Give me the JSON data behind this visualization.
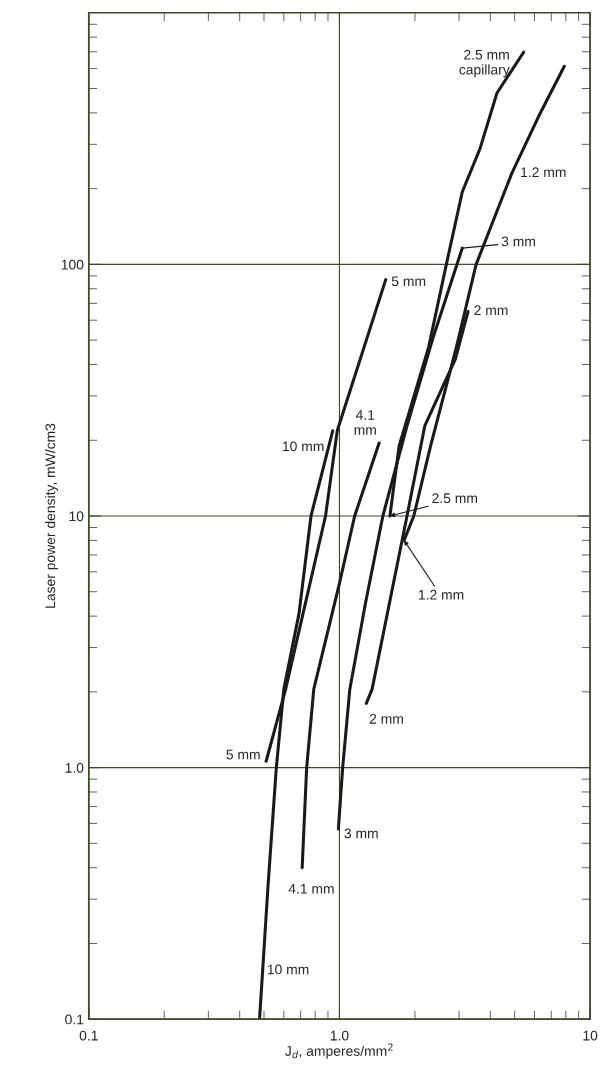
{
  "chart_data": {
    "type": "line",
    "xlabel": "J$_{d}$, amperes/mm$^{2}$",
    "ylabel": "Laser power density, mW/cm3",
    "log": "xy",
    "xlim": [
      0.1,
      10
    ],
    "ylim": [
      0.1,
      1000
    ],
    "xticks": [
      {
        "value": 0.1,
        "label": "0.1"
      },
      {
        "value": 1,
        "label": "1.0"
      },
      {
        "value": 10,
        "label": "10"
      }
    ],
    "yticks": [
      {
        "value": 0.1,
        "label": "0.1"
      },
      {
        "value": 1,
        "label": "1.0"
      },
      {
        "value": 10,
        "label": "10"
      },
      {
        "value": 100,
        "label": "100"
      }
    ],
    "grid": true,
    "legend": false,
    "marker": "none",
    "line_style": "solid",
    "series": [
      {
        "color": "#1a1a1a",
        "x": [
          0.48,
          0.52,
          0.56,
          0.6,
          0.69,
          0.77,
          0.94
        ],
        "values": [
          0.1,
          0.35,
          1.0,
          2.05,
          4.1,
          10,
          21.8
        ]
      },
      {
        "color": "#1a1a1a",
        "x": [
          0.51,
          0.61,
          0.88,
          0.98,
          1.53
        ],
        "values": [
          1.06,
          2.05,
          10,
          21.8,
          87
        ]
      },
      {
        "color": "#1a1a1a",
        "x": [
          0.71,
          0.74,
          0.79,
          1.0,
          1.15,
          1.44
        ],
        "values": [
          0.4,
          1.0,
          2.05,
          5.4,
          10,
          19.5
        ]
      },
      {
        "color": "#1a1a1a",
        "x": [
          0.99,
          1.03,
          1.1,
          1.27,
          1.49,
          1.86,
          2.37,
          3.09
        ],
        "values": [
          0.57,
          1.0,
          2.05,
          4.5,
          10,
          22.8,
          51.6,
          116
        ]
      },
      {
        "color": "#1a1a1a",
        "x": [
          1.59,
          1.73,
          2.27,
          2.67,
          3.09,
          3.64,
          4.25,
          5.43
        ],
        "values": [
          10,
          19,
          47,
          100,
          194,
          289,
          480,
          697
        ]
      },
      {
        "color": "#1a1a1a",
        "x": [
          1.81,
          1.98,
          2.31,
          2.93,
          3.51,
          4.87,
          6.22,
          7.89
        ],
        "values": [
          8.0,
          10,
          19,
          47,
          100,
          230,
          386,
          613
        ]
      },
      {
        "color": "#1a1a1a",
        "x": [
          1.28,
          1.35,
          1.86,
          2.19,
          2.9,
          3.26
        ],
        "values": [
          1.8,
          2.05,
          10,
          22.8,
          42,
          65
        ]
      }
    ],
    "annotations": [
      {
        "text": "2.5 mm\ncapillary",
        "x": 5.43,
        "y": 697
      },
      {
        "text": "1.2 mm",
        "x": 4.87,
        "y": 230
      },
      {
        "text": "3 mm",
        "x": 3.09,
        "y": 116
      },
      {
        "text": "2 mm",
        "x": 3.26,
        "y": 65
      },
      {
        "text": "5 mm",
        "x": 1.53,
        "y": 87
      },
      {
        "text": "10 mm",
        "x": 0.94,
        "y": 21.8
      },
      {
        "text": "4.1\nmm",
        "x": 1.44,
        "y": 19.5
      },
      {
        "text": "2.5 mm",
        "x": 1.59,
        "y": 10
      },
      {
        "text": "1.2 mm",
        "x": 1.81,
        "y": 8.0
      },
      {
        "text": "2 mm",
        "x": 1.28,
        "y": 1.8
      },
      {
        "text": "5 mm",
        "x": 0.51,
        "y": 1.06
      },
      {
        "text": "3 mm",
        "x": 0.99,
        "y": 0.57
      },
      {
        "text": "4.1 mm",
        "x": 0.71,
        "y": 0.4
      },
      {
        "text": "10 mm",
        "x": 0.494,
        "y": 0.156
      }
    ]
  }
}
